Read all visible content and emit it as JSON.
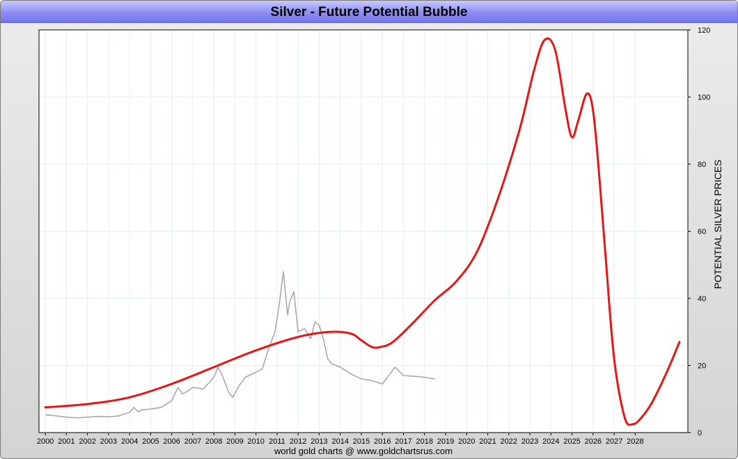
{
  "chart_data": {
    "type": "line",
    "title": "Silver - Future Potential Bubble",
    "credit": "world gold charts @ www.goldchartsrus.com",
    "ylabel": "POTENTIAL SILVER PRICES",
    "ylim": [
      0,
      120
    ],
    "xlim": [
      1999.7,
      2030.5
    ],
    "y_ticks": [
      "0",
      "20",
      "40",
      "60",
      "80",
      "100",
      "120"
    ],
    "x_ticks": [
      "2000",
      "2001",
      "2002",
      "2003",
      "2004",
      "2005",
      "2006",
      "2007",
      "2008",
      "2009",
      "2010",
      "2011",
      "2012",
      "2013",
      "2014",
      "2015",
      "2016",
      "2017",
      "2018",
      "2019",
      "2020",
      "2021",
      "2022",
      "2023",
      "2024",
      "2025",
      "2026",
      "2027",
      "2028"
    ],
    "grid": true,
    "y_axis_position": "right",
    "series": [
      {
        "color": "#a9a9a9",
        "x": [
          2000.0,
          2000.5,
          2001.0,
          2001.5,
          2002.0,
          2002.5,
          2003.0,
          2003.5,
          2004.0,
          2004.2,
          2004.4,
          2004.6,
          2005.0,
          2005.5,
          2006.0,
          2006.3,
          2006.5,
          2006.8,
          2007.0,
          2007.5,
          2008.0,
          2008.2,
          2008.4,
          2008.7,
          2008.9,
          2009.2,
          2009.5,
          2010.0,
          2010.3,
          2010.6,
          2010.9,
          2011.1,
          2011.3,
          2011.5,
          2011.6,
          2011.8,
          2012.0,
          2012.3,
          2012.6,
          2012.8,
          2013.0,
          2013.2,
          2013.4,
          2013.6,
          2014.0,
          2014.5,
          2015.0,
          2015.5,
          2016.0,
          2016.3,
          2016.6,
          2017.0,
          2017.5,
          2018.0,
          2018.5
        ],
        "y": [
          5.3,
          5.0,
          4.6,
          4.4,
          4.6,
          4.8,
          4.7,
          5.0,
          6.0,
          7.5,
          6.2,
          6.8,
          7.0,
          7.5,
          9.5,
          13.5,
          11.5,
          12.5,
          13.5,
          13.0,
          16.5,
          19.5,
          17.0,
          12.0,
          10.5,
          14.0,
          16.5,
          18.0,
          19.0,
          25.0,
          30.0,
          38.0,
          48.0,
          35.0,
          39.0,
          42.0,
          30.0,
          31.0,
          28.0,
          33.0,
          32.0,
          28.0,
          22.0,
          20.5,
          19.5,
          17.5,
          16.0,
          15.5,
          14.5,
          17.0,
          19.5,
          17.0,
          16.8,
          16.5,
          16.0
        ]
      },
      {
        "color": "#ee1111",
        "x": [
          2000.0,
          2002.0,
          2004.0,
          2006.0,
          2008.0,
          2010.0,
          2012.0,
          2013.5,
          2014.5,
          2015.0,
          2015.5,
          2015.9,
          2016.5,
          2017.5,
          2018.5,
          2019.5,
          2020.5,
          2021.5,
          2022.5,
          2023.2,
          2023.7,
          2024.2,
          2024.7,
          2025.0,
          2025.3,
          2025.7,
          2026.0,
          2026.3,
          2026.6,
          2027.0,
          2027.5,
          2027.9,
          2028.3,
          2028.8,
          2029.5,
          2030.1
        ],
        "y": [
          7.5,
          8.5,
          10.5,
          14.5,
          19.5,
          24.5,
          28.5,
          30.0,
          29.5,
          27.5,
          25.5,
          25.5,
          27.0,
          33.0,
          39.5,
          45.0,
          54.0,
          70.0,
          90.0,
          108.0,
          117.0,
          114.0,
          96.0,
          88.0,
          93.0,
          101.0,
          96.0,
          76.0,
          52.0,
          22.0,
          4.5,
          2.5,
          4.5,
          9.0,
          18.0,
          27.0
        ]
      }
    ]
  }
}
